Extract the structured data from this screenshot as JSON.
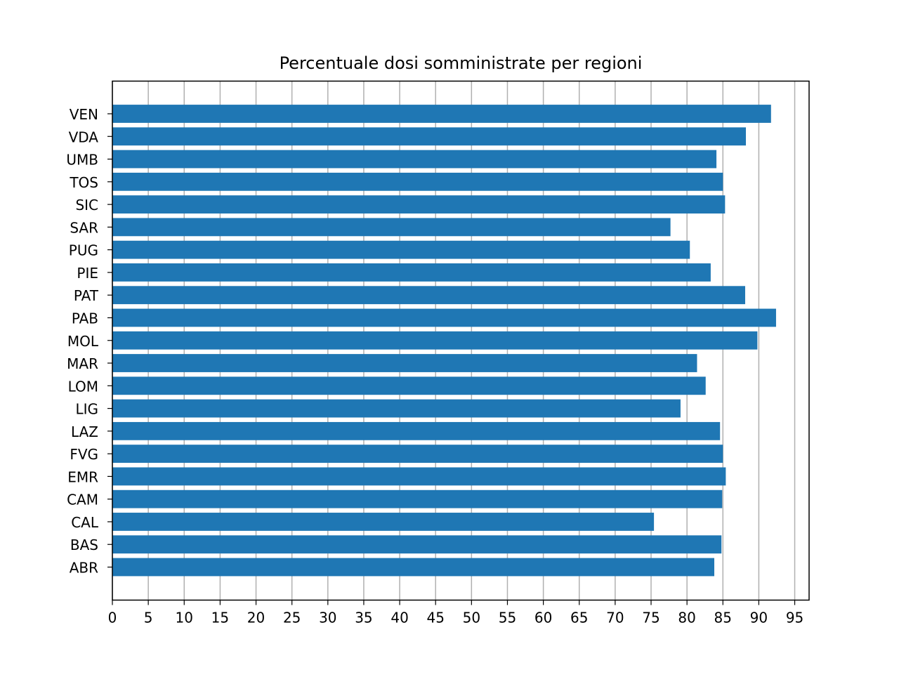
{
  "chart_data": {
    "type": "bar",
    "orientation": "horizontal",
    "title": "Percentuale dosi somministrate per regioni",
    "xlabel": "",
    "ylabel": "",
    "categories": [
      "ABR",
      "BAS",
      "CAL",
      "CAM",
      "EMR",
      "FVG",
      "LAZ",
      "LIG",
      "LOM",
      "MAR",
      "MOL",
      "PAB",
      "PAT",
      "PIE",
      "PUG",
      "SAR",
      "SIC",
      "TOS",
      "UMB",
      "VDA",
      "VEN"
    ],
    "values": [
      83.8,
      84.8,
      75.4,
      84.9,
      85.4,
      85.0,
      84.6,
      79.1,
      82.6,
      81.4,
      89.8,
      92.4,
      88.1,
      83.3,
      80.4,
      77.7,
      85.3,
      85.0,
      84.1,
      88.2,
      91.7
    ],
    "xlim": [
      0,
      97
    ],
    "xticks": [
      0,
      5,
      10,
      15,
      20,
      25,
      30,
      35,
      40,
      45,
      50,
      55,
      60,
      65,
      70,
      75,
      80,
      85,
      90,
      95
    ],
    "grid": "x",
    "legend": "none",
    "colors": {
      "bar": "#1f77b4",
      "grid": "#b0b0b0",
      "axes": "#000000",
      "background": "#ffffff"
    }
  }
}
